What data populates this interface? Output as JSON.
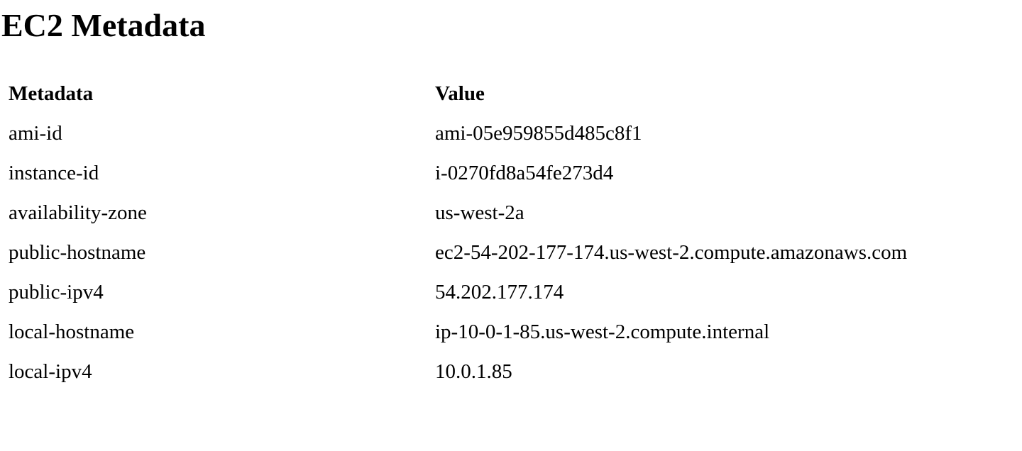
{
  "page": {
    "title": "EC2 Metadata"
  },
  "table": {
    "headers": {
      "metadata": "Metadata",
      "value": "Value"
    },
    "rows": [
      {
        "key": "ami-id",
        "value": "ami-05e959855d485c8f1"
      },
      {
        "key": "instance-id",
        "value": "i-0270fd8a54fe273d4"
      },
      {
        "key": "availability-zone",
        "value": "us-west-2a"
      },
      {
        "key": "public-hostname",
        "value": "ec2-54-202-177-174.us-west-2.compute.amazonaws.com"
      },
      {
        "key": "public-ipv4",
        "value": "54.202.177.174"
      },
      {
        "key": "local-hostname",
        "value": "ip-10-0-1-85.us-west-2.compute.internal"
      },
      {
        "key": "local-ipv4",
        "value": "10.0.1.85"
      }
    ]
  }
}
